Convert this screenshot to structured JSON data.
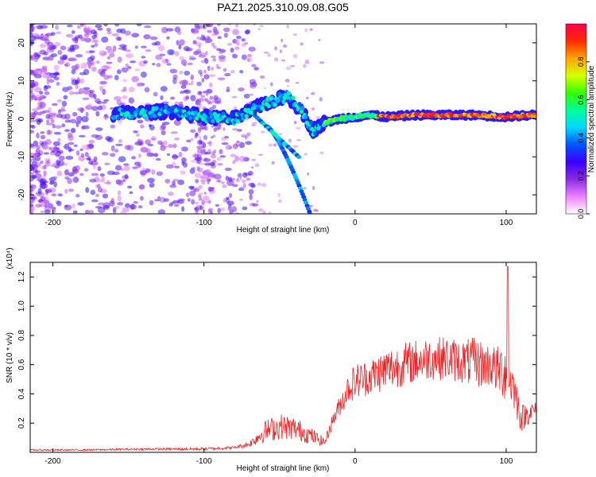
{
  "title": "PAZ1.2025.310.09.08.G05",
  "chart_data": [
    {
      "type": "heatmap",
      "xlabel": "Height of straight line (km)",
      "ylabel": "Frequency (Hz)",
      "xlim": [
        -215,
        120
      ],
      "ylim": [
        -25,
        25
      ],
      "xticks": [
        -200,
        -100,
        0,
        100
      ],
      "xtick_labels": [
        "-200",
        "-100",
        "0",
        "100"
      ],
      "yticks": [
        -20,
        -10,
        0,
        10,
        20
      ],
      "ytick_labels": [
        "-20",
        "-10",
        "0",
        "10",
        "20"
      ],
      "colorbar": {
        "label": "Normalized spectral amplitude",
        "ticks": [
          0.0,
          0.2,
          0.4,
          0.6,
          0.8
        ],
        "tick_labels": [
          "0.0",
          "0.2",
          "0.4",
          "0.6",
          "0.8"
        ],
        "colors": [
          "#ffffff",
          "#ee82ff",
          "#8a2be2",
          "#3c00ff",
          "#0055ff",
          "#00d7ff",
          "#00ff9a",
          "#33ff00",
          "#d6ff00",
          "#ffa500",
          "#ff2a00",
          "#ff0050"
        ]
      },
      "ridge": {
        "description_x": [
          -200,
          -150,
          -120,
          -100,
          -80,
          -60,
          -45,
          -35,
          -28,
          -20,
          -10,
          0,
          10,
          20,
          40,
          60,
          80,
          100,
          115
        ],
        "description_y": [
          0,
          1.5,
          2,
          0.5,
          0,
          4,
          6,
          2,
          -3,
          -1,
          0,
          0.5,
          1,
          0.5,
          1,
          1,
          1,
          0.5,
          1
        ]
      }
    },
    {
      "type": "line",
      "xlabel": "Height of straight line (km)",
      "ylabel": "SNR (10 * v/v)",
      "yexponent": "(x10⁴)",
      "xlim": [
        -215,
        120
      ],
      "ylim": [
        0,
        1.3
      ],
      "xticks": [
        -200,
        -100,
        0,
        100
      ],
      "xtick_labels": [
        "-200",
        "-100",
        "0",
        "100"
      ],
      "yticks": [
        0.2,
        0.4,
        0.6,
        0.8,
        1.0,
        1.2
      ],
      "ytick_labels": [
        "0.2",
        "0.4",
        "0.6",
        "0.8",
        "1.0",
        "1.2"
      ],
      "line_color": "#ee2222",
      "envelope": {
        "x": [
          -215,
          -180,
          -140,
          -100,
          -80,
          -70,
          -60,
          -50,
          -40,
          -30,
          -20,
          -15,
          -10,
          -5,
          0,
          10,
          20,
          30,
          40,
          50,
          60,
          70,
          80,
          90,
          95,
          100,
          105,
          110,
          115,
          120
        ],
        "base": [
          0.015,
          0.015,
          0.02,
          0.02,
          0.03,
          0.05,
          0.12,
          0.15,
          0.14,
          0.1,
          0.06,
          0.2,
          0.3,
          0.4,
          0.45,
          0.48,
          0.52,
          0.55,
          0.58,
          0.6,
          0.6,
          0.58,
          0.56,
          0.55,
          0.5,
          0.5,
          0.4,
          0.2,
          0.25,
          0.28
        ],
        "amp": [
          0.01,
          0.01,
          0.015,
          0.02,
          0.02,
          0.04,
          0.15,
          0.18,
          0.16,
          0.12,
          0.06,
          0.1,
          0.15,
          0.2,
          0.25,
          0.25,
          0.3,
          0.3,
          0.3,
          0.3,
          0.3,
          0.3,
          0.35,
          0.3,
          0.35,
          0.45,
          0.3,
          0.2,
          0.15,
          0.1
        ]
      },
      "peak": {
        "x": 101,
        "y": 1.27
      }
    }
  ]
}
